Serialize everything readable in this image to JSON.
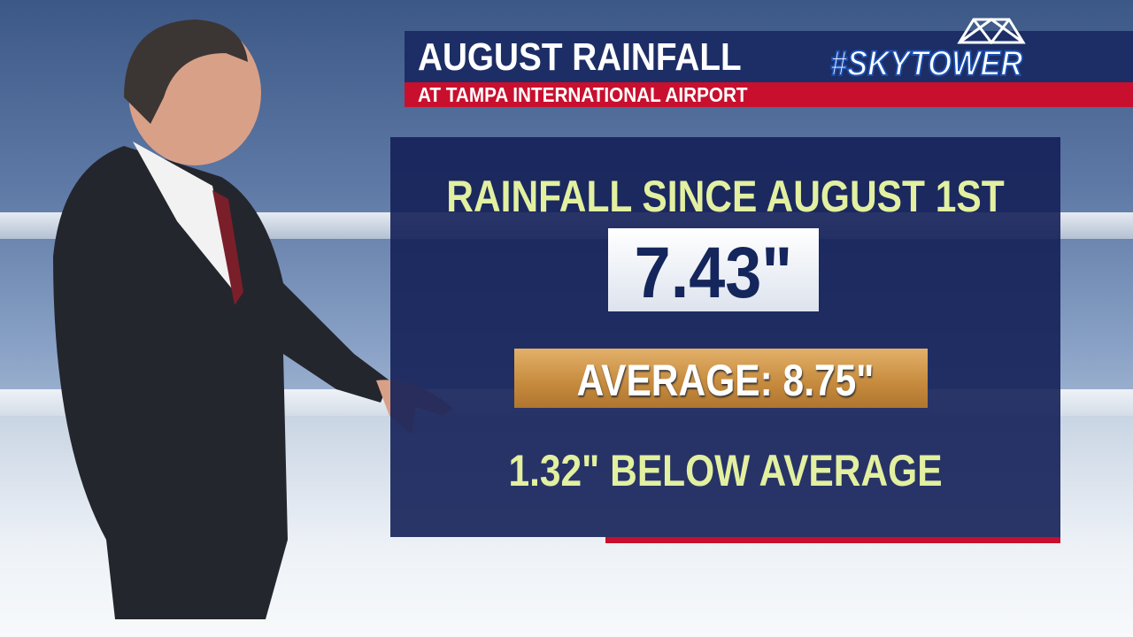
{
  "header": {
    "title": "AUGUST RAINFALL",
    "subtitle": "AT TAMPA INTERNATIONAL AIRPORT",
    "brand": "#SKYTOWER"
  },
  "panel": {
    "heading": "RAINFALL SINCE AUGUST 1ST",
    "value": "7.43\"",
    "average": "AVERAGE: 8.75\"",
    "difference": "1.32\" BELOW AVERAGE"
  }
}
